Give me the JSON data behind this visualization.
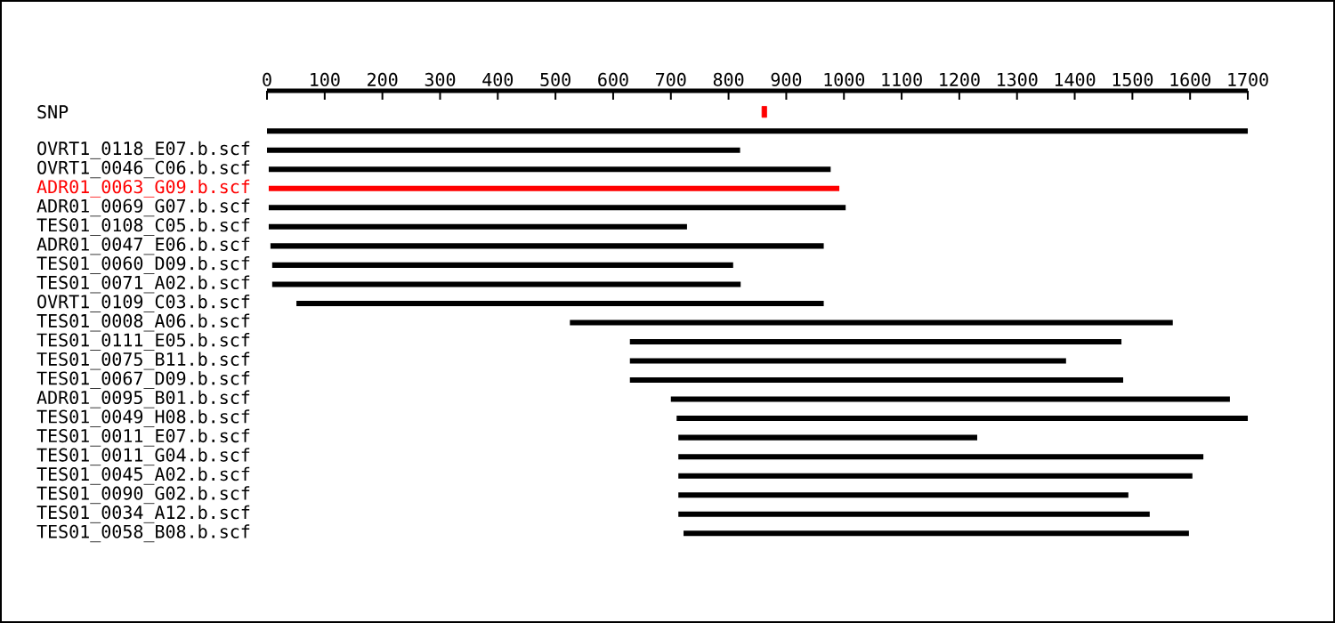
{
  "chart_data": {
    "type": "bar",
    "orientation": "horizontal",
    "categories": [
      "SNP",
      null,
      "OVRT1_0118_E07.b.scf",
      "OVRT1_0046_C06.b.scf",
      "ADR01_0063_G09.b.scf",
      "ADR01_0069_G07.b.scf",
      "TES01_0108_C05.b.scf",
      "ADR01_0047_E06.b.scf",
      "TES01_0060_D09.b.scf",
      "TES01_0071_A02.b.scf",
      "OVRT1_0109_C03.b.scf",
      "TES01_0008_A06.b.scf",
      "TES01_0111_E05.b.scf",
      "TES01_0075_B11.b.scf",
      "TES01_0067_D09.b.scf",
      "ADR01_0095_B01.b.scf",
      "TES01_0049_H08.b.scf",
      "TES01_0011_E07.b.scf",
      "TES01_0011_G04.b.scf",
      "TES01_0045_A02.b.scf",
      "TES01_0090_G02.b.scf",
      "TES01_0034_A12.b.scf",
      "TES01_0058_B08.b.scf"
    ],
    "series": [
      {
        "base": [
          null,
          0,
          0,
          3,
          3,
          3,
          3,
          6,
          9,
          9,
          51,
          525,
          629,
          629,
          629,
          700,
          710,
          713,
          713,
          713,
          713,
          713,
          722
        ],
        "values": [
          null,
          1700,
          820,
          974,
          989,
          1000,
          725,
          959,
          799,
          812,
          914,
          1045,
          852,
          756,
          855,
          969,
          990,
          518,
          910,
          891,
          780,
          817,
          876
        ],
        "colors": [
          "#000000",
          "#000000",
          "#000000",
          "#000000",
          "#ff0000",
          "#000000",
          "#000000",
          "#000000",
          "#000000",
          "#000000",
          "#000000",
          "#000000",
          "#000000",
          "#000000",
          "#000000",
          "#000000",
          "#000000",
          "#000000",
          "#000000",
          "#000000",
          "#000000",
          "#000000",
          "#000000"
        ]
      },
      {
        "type": "scatter",
        "x": [
          "SNP"
        ],
        "values": [
          862
        ],
        "color": "#ff0000",
        "marker": "square"
      }
    ],
    "xlim": [
      0,
      1700
    ],
    "xticks": [
      0,
      100,
      200,
      300,
      400,
      500,
      600,
      700,
      800,
      900,
      1000,
      1100,
      1200,
      1300,
      1400,
      1500,
      1600,
      1700
    ],
    "grid": false
  }
}
